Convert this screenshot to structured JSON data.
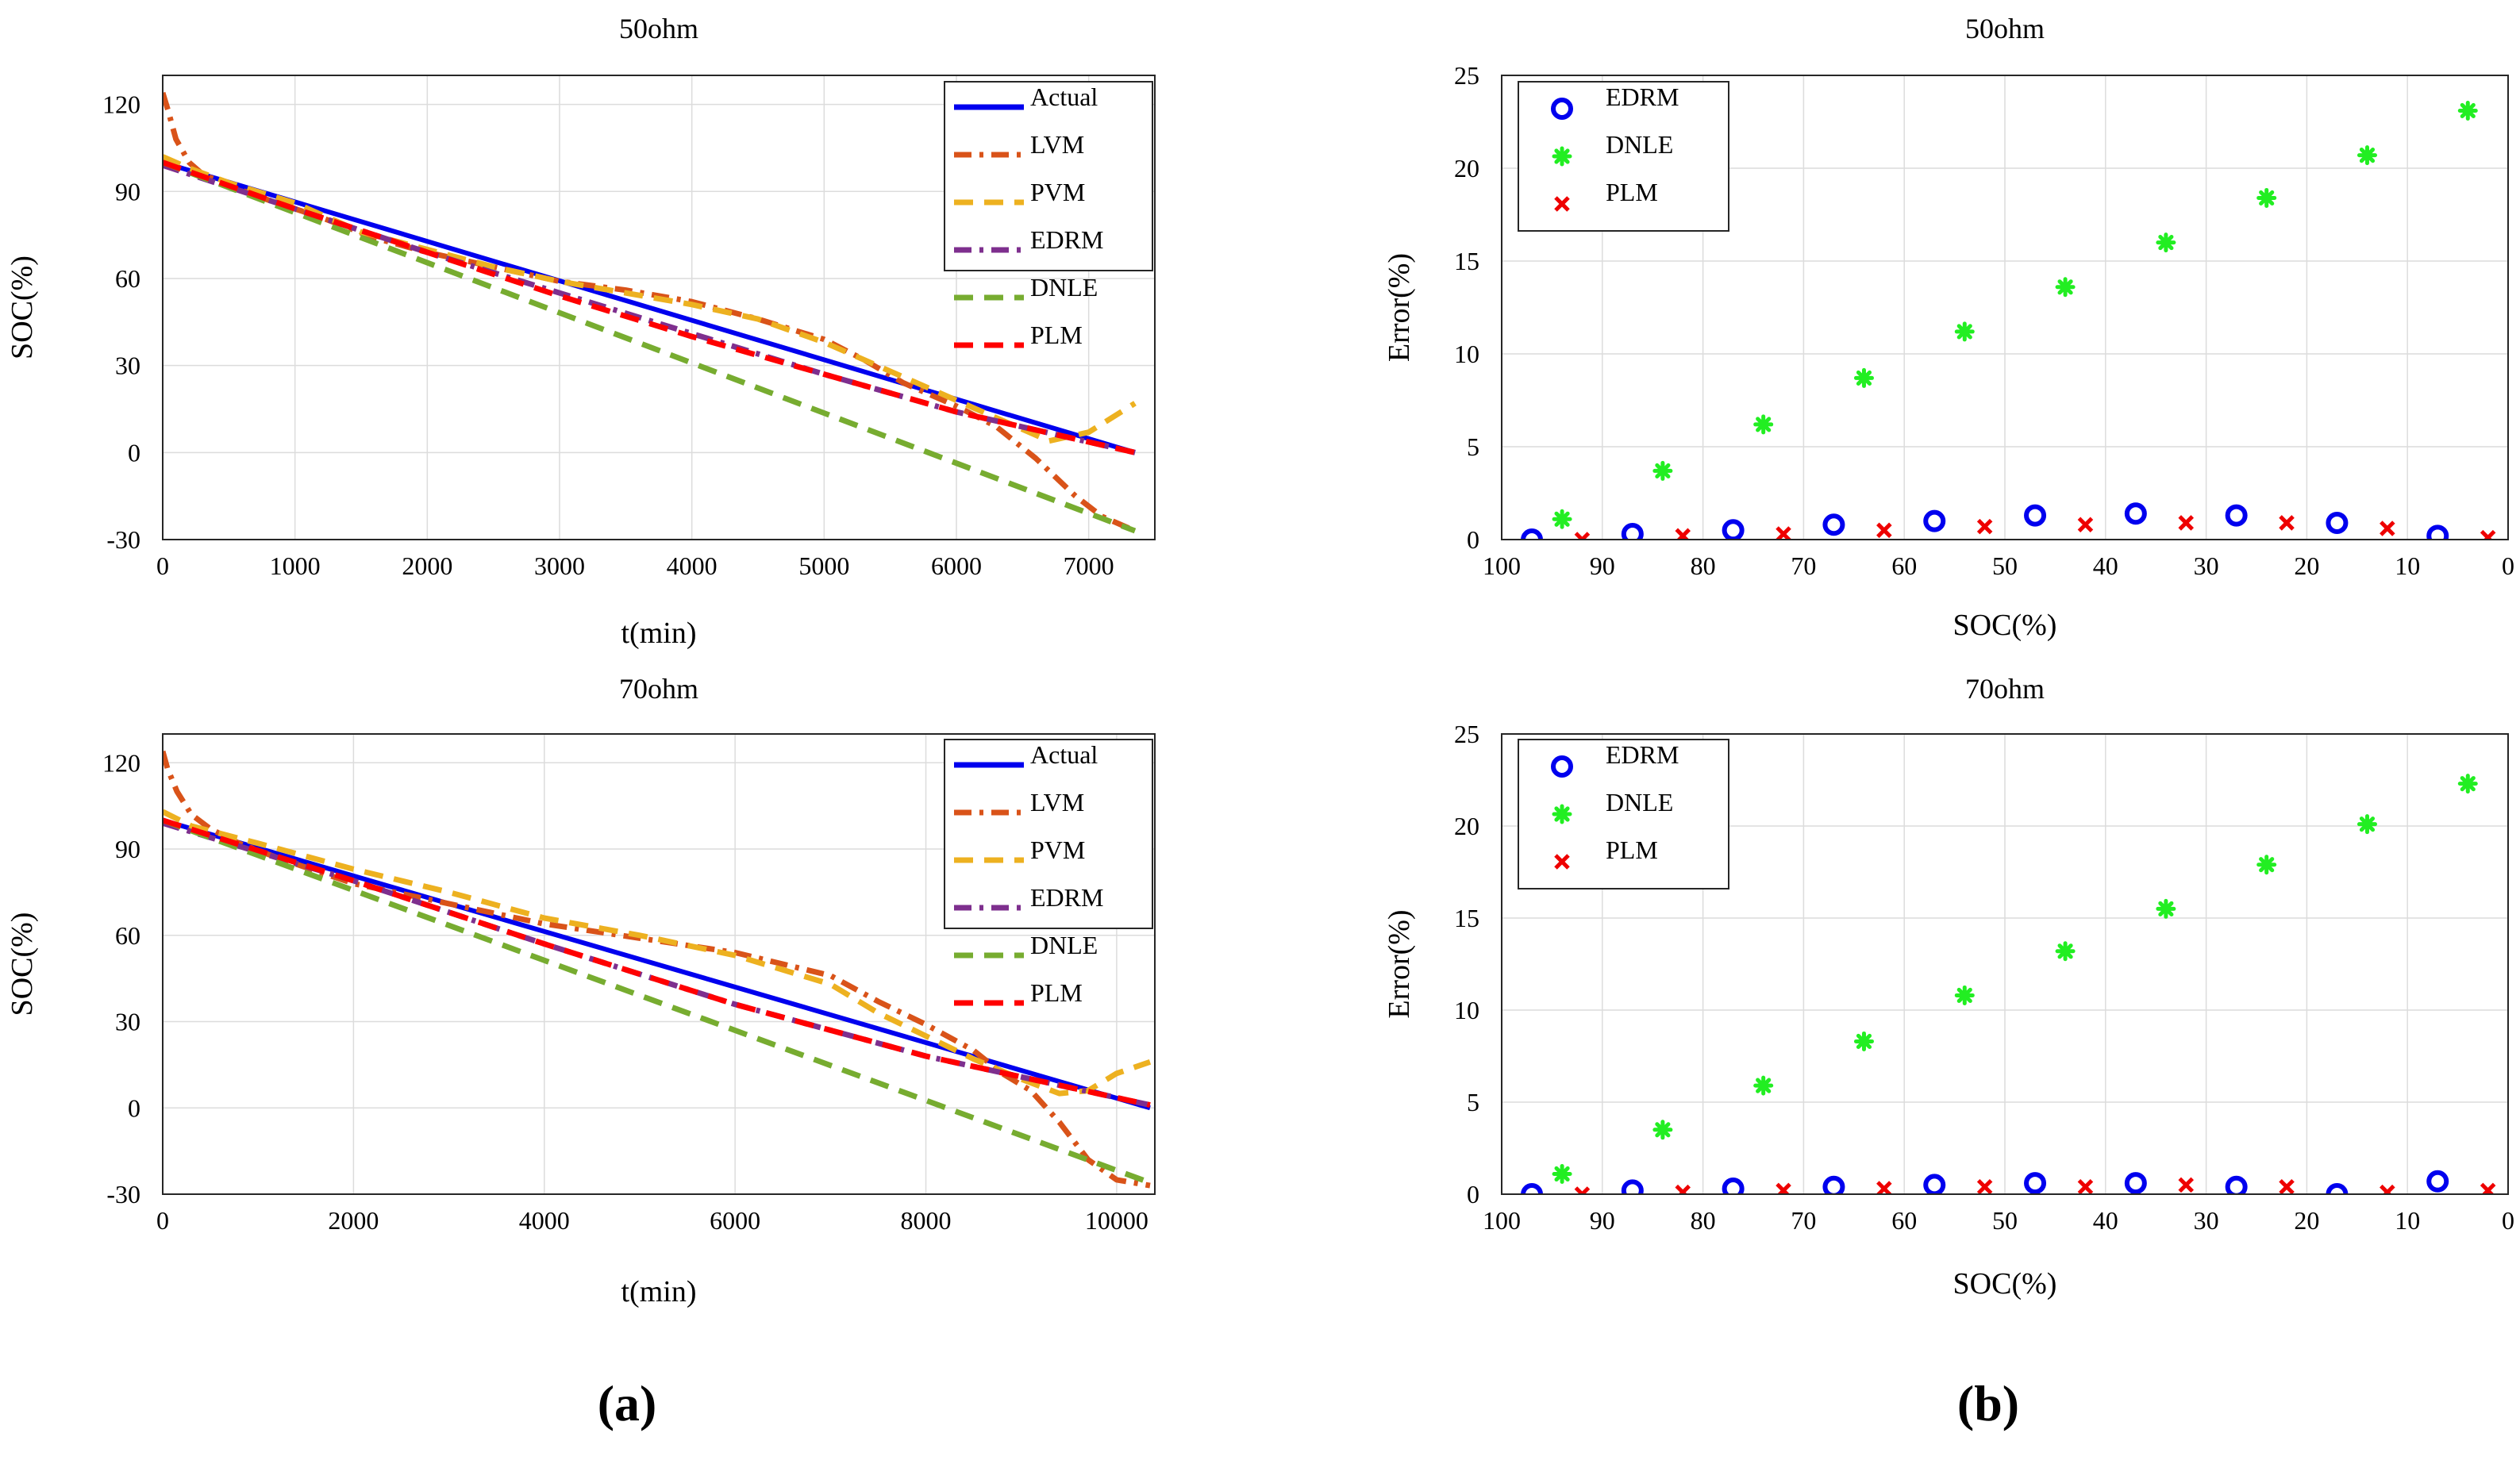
{
  "subfigure_labels": [
    "(a)",
    "(b)"
  ],
  "chart_data": [
    {
      "id": "a1",
      "type": "line",
      "title": "50ohm",
      "xlabel": "t(min)",
      "ylabel": "SOC(%)",
      "xlim": [
        0,
        7500
      ],
      "ylim": [
        -30,
        130
      ],
      "xticks": [
        0,
        1000,
        2000,
        3000,
        4000,
        5000,
        6000,
        7000
      ],
      "yticks": [
        -30,
        0,
        30,
        60,
        90,
        120
      ],
      "legend_position": "top-right",
      "series": [
        {
          "name": "Actual",
          "color": "#0000ee",
          "dash": "solid",
          "x": [
            0,
            7350
          ],
          "y": [
            100,
            0
          ]
        },
        {
          "name": "LVM",
          "color": "#d95319",
          "dash": "dashdot",
          "x": [
            0,
            40,
            100,
            200,
            300,
            500,
            800,
            1200,
            1600,
            2000,
            2500,
            3000,
            3500,
            4000,
            4500,
            5000,
            5300,
            5600,
            6000,
            6300,
            6600,
            6900,
            7100,
            7350
          ],
          "y": [
            124,
            118,
            108,
            100,
            96,
            92,
            87,
            81,
            74,
            69,
            64,
            59,
            56,
            52,
            46,
            39,
            32,
            24,
            16,
            9,
            -2,
            -15,
            -22,
            -27
          ]
        },
        {
          "name": "PVM",
          "color": "#edb120",
          "dash": "dash",
          "x": [
            0,
            200,
            500,
            1000,
            1500,
            2000,
            2500,
            3000,
            3500,
            4000,
            4500,
            5000,
            5500,
            6000,
            6400,
            6700,
            7000,
            7350
          ],
          "y": [
            102,
            98,
            93,
            86,
            76,
            70,
            64,
            59,
            55,
            51,
            46,
            38,
            28,
            18,
            10,
            4,
            7,
            17
          ]
        },
        {
          "name": "EDRM",
          "color": "#7e2f8e",
          "dash": "dashdot",
          "x": [
            0,
            1000,
            2000,
            3000,
            4000,
            5000,
            6000,
            7350
          ],
          "y": [
            99,
            84,
            69,
            55,
            41,
            27,
            14,
            0
          ]
        },
        {
          "name": "DNLE",
          "color": "#77ac30",
          "dash": "dash",
          "x": [
            0,
            7350
          ],
          "y": [
            100,
            -27
          ]
        },
        {
          "name": "PLM",
          "color": "#ff0000",
          "dash": "dash",
          "x": [
            0,
            1000,
            2000,
            3000,
            4000,
            5000,
            6000,
            7350
          ],
          "y": [
            100,
            84,
            69,
            54,
            40,
            27,
            14,
            0
          ]
        }
      ]
    },
    {
      "id": "a2",
      "type": "line",
      "title": "70ohm",
      "xlabel": "t(min)",
      "ylabel": "SOC(%)",
      "xlim": [
        0,
        10400
      ],
      "ylim": [
        -30,
        130
      ],
      "xticks": [
        0,
        2000,
        4000,
        6000,
        8000,
        10000
      ],
      "yticks": [
        -30,
        0,
        30,
        60,
        90,
        120
      ],
      "legend_position": "top-right",
      "series": [
        {
          "name": "Actual",
          "color": "#0000ee",
          "dash": "solid",
          "x": [
            0,
            10350
          ],
          "y": [
            100,
            0
          ]
        },
        {
          "name": "LVM",
          "color": "#d95319",
          "dash": "dashdot",
          "x": [
            0,
            50,
            150,
            300,
            500,
            800,
            1200,
            2000,
            3000,
            4000,
            5000,
            6000,
            6500,
            7000,
            7500,
            8000,
            8500,
            8800,
            9100,
            9400,
            9700,
            10000,
            10350
          ],
          "y": [
            124,
            118,
            110,
            102,
            97,
            92,
            87,
            78,
            71,
            64,
            59,
            54,
            50,
            46,
            37,
            29,
            20,
            12,
            6,
            -5,
            -18,
            -25,
            -27
          ]
        },
        {
          "name": "PVM",
          "color": "#edb120",
          "dash": "dash",
          "x": [
            0,
            300,
            1000,
            2000,
            3000,
            4000,
            5000,
            6000,
            7000,
            7500,
            8000,
            8500,
            9000,
            9400,
            9700,
            10000,
            10350
          ],
          "y": [
            103,
            98,
            92,
            83,
            75,
            66,
            60,
            53,
            43,
            33,
            25,
            17,
            10,
            5,
            6,
            12,
            16
          ]
        },
        {
          "name": "EDRM",
          "color": "#7e2f8e",
          "dash": "dashdot",
          "x": [
            0,
            2000,
            4000,
            6000,
            8000,
            10350
          ],
          "y": [
            99,
            79,
            57,
            36,
            18,
            1
          ]
        },
        {
          "name": "DNLE",
          "color": "#77ac30",
          "dash": "dash",
          "x": [
            0,
            10350
          ],
          "y": [
            100,
            -26
          ]
        },
        {
          "name": "PLM",
          "color": "#ff0000",
          "dash": "dash",
          "x": [
            0,
            2000,
            4000,
            6000,
            8000,
            10350
          ],
          "y": [
            100,
            79,
            57,
            36,
            18,
            1
          ]
        }
      ]
    },
    {
      "id": "b1",
      "type": "scatter",
      "title": "50ohm",
      "xlabel": "SOC(%)",
      "ylabel": "Error(%)",
      "xlim": [
        100,
        0
      ],
      "x_reversed": true,
      "ylim": [
        0,
        25
      ],
      "xticks": [
        100,
        90,
        80,
        70,
        60,
        50,
        40,
        30,
        20,
        10,
        0
      ],
      "yticks": [
        0,
        5,
        10,
        15,
        20,
        25
      ],
      "legend_position": "top-left",
      "series": [
        {
          "name": "EDRM",
          "color": "#0000ee",
          "marker": "circle",
          "x": [
            97,
            87,
            77,
            67,
            57,
            47,
            37,
            27,
            17,
            7
          ],
          "y": [
            0.0,
            0.3,
            0.5,
            0.8,
            1.0,
            1.3,
            1.4,
            1.3,
            0.9,
            0.2
          ]
        },
        {
          "name": "DNLE",
          "color": "#22ee22",
          "marker": "star",
          "x": [
            94,
            84,
            74,
            64,
            54,
            44,
            34,
            24,
            14,
            4
          ],
          "y": [
            1.1,
            3.7,
            6.2,
            8.7,
            11.2,
            13.6,
            16.0,
            18.4,
            20.7,
            23.1
          ]
        },
        {
          "name": "PLM",
          "color": "#ee0000",
          "marker": "x",
          "x": [
            92,
            82,
            72,
            62,
            52,
            42,
            32,
            22,
            12,
            2
          ],
          "y": [
            0.0,
            0.2,
            0.3,
            0.5,
            0.7,
            0.8,
            0.9,
            0.9,
            0.6,
            0.1
          ]
        }
      ]
    },
    {
      "id": "b2",
      "type": "scatter",
      "title": "70ohm",
      "xlabel": "SOC(%)",
      "ylabel": "Error(%)",
      "xlim": [
        100,
        0
      ],
      "x_reversed": true,
      "ylim": [
        0,
        25
      ],
      "xticks": [
        100,
        90,
        80,
        70,
        60,
        50,
        40,
        30,
        20,
        10,
        0
      ],
      "yticks": [
        0,
        5,
        10,
        15,
        20,
        25
      ],
      "legend_position": "top-left",
      "series": [
        {
          "name": "EDRM",
          "color": "#0000ee",
          "marker": "circle",
          "x": [
            97,
            87,
            77,
            67,
            57,
            47,
            37,
            27,
            17,
            7
          ],
          "y": [
            0.0,
            0.2,
            0.3,
            0.4,
            0.5,
            0.6,
            0.6,
            0.4,
            0.0,
            0.7
          ]
        },
        {
          "name": "DNLE",
          "color": "#22ee22",
          "marker": "star",
          "x": [
            94,
            84,
            74,
            64,
            54,
            44,
            34,
            24,
            14,
            4
          ],
          "y": [
            1.1,
            3.5,
            5.9,
            8.3,
            10.8,
            13.2,
            15.5,
            17.9,
            20.1,
            22.3
          ]
        },
        {
          "name": "PLM",
          "color": "#ee0000",
          "marker": "x",
          "x": [
            92,
            82,
            72,
            62,
            52,
            42,
            32,
            22,
            12,
            2
          ],
          "y": [
            0.0,
            0.1,
            0.2,
            0.3,
            0.4,
            0.4,
            0.5,
            0.4,
            0.1,
            0.2
          ]
        }
      ]
    }
  ]
}
